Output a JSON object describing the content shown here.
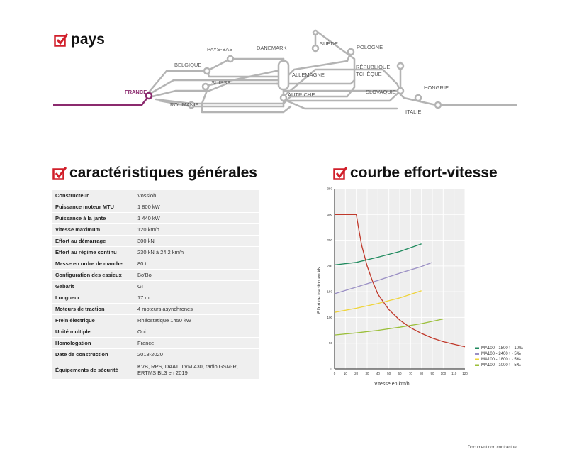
{
  "sections": {
    "pays": "pays",
    "caracteristiques": "caractéristiques générales",
    "courbe": "courbe effort-vitesse"
  },
  "map": {
    "countries": [
      {
        "id": "france",
        "label": "FRANCE",
        "highlight": true
      },
      {
        "id": "belgique",
        "label": "BELGIQUE"
      },
      {
        "id": "pays-bas",
        "label": "PAYS-BAS"
      },
      {
        "id": "danemark",
        "label": "DANEMARK"
      },
      {
        "id": "suede",
        "label": "SUÈDE"
      },
      {
        "id": "pologne",
        "label": "POLOGNE"
      },
      {
        "id": "allemagne",
        "label": "ALLEMAGNE"
      },
      {
        "id": "republique-tcheque",
        "label": "RÉPUBLIQUE"
      },
      {
        "id": "republique-tcheque-2",
        "label": "TCHÈQUE"
      },
      {
        "id": "suisse",
        "label": "SUISSE"
      },
      {
        "id": "autriche",
        "label": "AUTRICHE"
      },
      {
        "id": "slovaquie",
        "label": "SLOVAQUIE"
      },
      {
        "id": "hongrie",
        "label": "HONGRIE"
      },
      {
        "id": "italie",
        "label": "ITALIE"
      },
      {
        "id": "roumanie",
        "label": "ROUMANIE"
      }
    ],
    "colors": {
      "line": "#b4b4b4",
      "france": "#8b2a6e"
    }
  },
  "specs": [
    {
      "label": "Constructeur",
      "value": "Vossloh"
    },
    {
      "label": "Puissance moteur MTU",
      "value": "1 800 kW"
    },
    {
      "label": "Puissance à la jante",
      "value": "1 440 kW"
    },
    {
      "label": "Vitesse maximum",
      "value": "120 km/h"
    },
    {
      "label": "Effort au démarrage",
      "value": "300 kN"
    },
    {
      "label": "Effort au régime continu",
      "value": "230 kN à 24,2 km/h"
    },
    {
      "label": "Masse en ordre de marche",
      "value": "80 t"
    },
    {
      "label": "Configuration des essieux",
      "value": "Bo'Bo'"
    },
    {
      "label": "Gabarit",
      "value": "GI"
    },
    {
      "label": "Longueur",
      "value": "17 m"
    },
    {
      "label": "Moteurs de traction",
      "value": "4 moteurs asynchrones"
    },
    {
      "label": "Frein électrique",
      "value": "Rhéostatique 1450 kW"
    },
    {
      "label": "Unité multiple",
      "value": "Oui"
    },
    {
      "label": "Homologation",
      "value": "France"
    },
    {
      "label": "Date de construction",
      "value": "2018-2020"
    },
    {
      "label": "Équipements de sécurité",
      "value": "KVB, RPS, DAAT, TVM 430, radio GSM-R,",
      "value2": "ERTMS BL3 en 2019"
    }
  ],
  "chart_data": {
    "type": "line",
    "xlabel": "Vitesse en km/h",
    "ylabel": "Effort de traction en kN",
    "xlim": [
      0,
      120
    ],
    "ylim": [
      0,
      350
    ],
    "xticks": [
      0,
      10,
      20,
      30,
      40,
      50,
      60,
      70,
      80,
      90,
      100,
      110,
      120
    ],
    "yticks": [
      0,
      50,
      100,
      150,
      200,
      250,
      300,
      350
    ],
    "grid": true,
    "legend_position": "bottom-right",
    "series": [
      {
        "name": "effort",
        "color": "#c0392b",
        "x": [
          0,
          20,
          22,
          25,
          30,
          35,
          40,
          50,
          60,
          70,
          80,
          90,
          100,
          110,
          120
        ],
        "y": [
          300,
          300,
          275,
          240,
          200,
          170,
          145,
          115,
          95,
          80,
          69,
          60,
          53,
          48,
          43
        ]
      },
      {
        "name": "MA100 - 1800 t - 10‰",
        "color": "#1f8a5e",
        "x": [
          0,
          20,
          40,
          60,
          80
        ],
        "y": [
          202,
          207,
          217,
          228,
          243
        ]
      },
      {
        "name": "MA100 - 2400 t - 5‰",
        "color": "#9a8fc4",
        "x": [
          0,
          20,
          40,
          60,
          80,
          90
        ],
        "y": [
          146,
          159,
          172,
          186,
          199,
          207
        ]
      },
      {
        "name": "MA100 - 1800 t - 5‰",
        "color": "#efd43a",
        "x": [
          0,
          20,
          40,
          60,
          80
        ],
        "y": [
          110,
          118,
          127,
          138,
          152
        ]
      },
      {
        "name": "MA100 - 1000 t - 5‰",
        "color": "#9bbf3a",
        "x": [
          0,
          20,
          40,
          60,
          80,
          100
        ],
        "y": [
          66,
          70,
          75,
          81,
          88,
          97
        ]
      }
    ]
  },
  "footer": "Document non contractuel"
}
